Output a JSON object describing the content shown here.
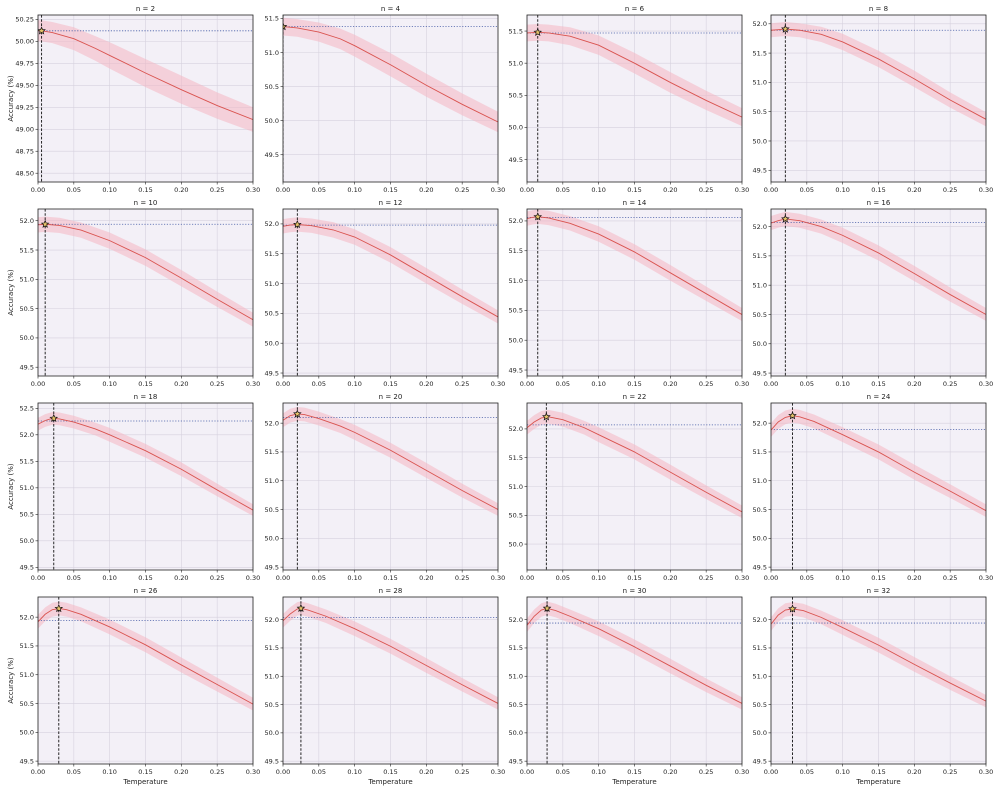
{
  "colors": {
    "mean": "#d9534f",
    "band": "#f4b6c2",
    "reference": "#4a5fa8",
    "best_line": "#111111",
    "star_fill": "#e6c36a"
  },
  "chart_data": {
    "type": "line",
    "shared_x_label": "Temperature",
    "shared_y_label": "Accuracy (%)",
    "x_ticks": [
      0.0,
      0.05,
      0.1,
      0.15,
      0.2,
      0.25,
      0.3
    ],
    "x_tick_labels": [
      "0.00",
      "0.05",
      "0.10",
      "0.15",
      "0.20",
      "0.25",
      "0.30"
    ],
    "xlim": [
      0.0,
      0.3
    ],
    "grid": true,
    "panels": [
      {
        "title": "n = 2",
        "ylim": [
          48.4,
          50.3
        ],
        "y_ticks": [
          48.5,
          48.75,
          49.0,
          49.25,
          49.5,
          49.75,
          50.0,
          50.25
        ],
        "y_tick_labels": [
          "48.50",
          "48.75",
          "49.00",
          "49.25",
          "49.50",
          "49.75",
          "50.00",
          "50.25"
        ],
        "x": [
          0.0,
          0.005,
          0.02,
          0.05,
          0.08,
          0.1,
          0.15,
          0.2,
          0.25,
          0.3
        ],
        "mean": [
          50.12,
          50.12,
          50.1,
          50.03,
          49.92,
          49.84,
          49.64,
          49.45,
          49.27,
          49.11
        ],
        "band": [
          0.12,
          0.12,
          0.12,
          0.13,
          0.14,
          0.15,
          0.16,
          0.16,
          0.15,
          0.14
        ],
        "reference": 50.12,
        "best_x": 0.005,
        "best_y": 50.12
      },
      {
        "title": "n = 4",
        "ylim": [
          49.1,
          51.55
        ],
        "y_ticks": [
          49.5,
          50.0,
          50.5,
          51.0,
          51.5
        ],
        "y_tick_labels": [
          "49.5",
          "50.0",
          "50.5",
          "51.0",
          "51.5"
        ],
        "x": [
          0.0,
          0.02,
          0.05,
          0.08,
          0.1,
          0.15,
          0.2,
          0.25,
          0.3
        ],
        "mean": [
          51.38,
          51.36,
          51.3,
          51.2,
          51.1,
          50.82,
          50.52,
          50.24,
          49.98
        ],
        "band": [
          0.13,
          0.13,
          0.14,
          0.15,
          0.16,
          0.17,
          0.17,
          0.16,
          0.15
        ],
        "reference": 51.38,
        "best_x": 0.0,
        "best_y": 51.38
      },
      {
        "title": "n = 6",
        "ylim": [
          49.15,
          51.75
        ],
        "y_ticks": [
          49.5,
          50.0,
          50.5,
          51.0,
          51.5
        ],
        "y_tick_labels": [
          "49.5",
          "50.0",
          "50.5",
          "51.0",
          "51.5"
        ],
        "x": [
          0.0,
          0.015,
          0.03,
          0.06,
          0.1,
          0.15,
          0.2,
          0.25,
          0.3
        ],
        "mean": [
          51.47,
          51.48,
          51.47,
          51.42,
          51.28,
          51.0,
          50.7,
          50.42,
          50.16
        ],
        "band": [
          0.13,
          0.13,
          0.13,
          0.14,
          0.15,
          0.16,
          0.16,
          0.15,
          0.14
        ],
        "reference": 51.47,
        "best_x": 0.015,
        "best_y": 51.48
      },
      {
        "title": "n = 8",
        "ylim": [
          49.3,
          52.15
        ],
        "y_ticks": [
          49.5,
          50.0,
          50.5,
          51.0,
          51.5,
          52.0
        ],
        "y_tick_labels": [
          "49.5",
          "50.0",
          "50.5",
          "51.0",
          "51.5",
          "52.0"
        ],
        "x": [
          0.0,
          0.01,
          0.02,
          0.04,
          0.07,
          0.1,
          0.15,
          0.2,
          0.25,
          0.3
        ],
        "mean": [
          51.89,
          51.9,
          51.91,
          51.89,
          51.82,
          51.69,
          51.4,
          51.06,
          50.7,
          50.37
        ],
        "band": [
          0.12,
          0.12,
          0.12,
          0.12,
          0.13,
          0.14,
          0.14,
          0.14,
          0.13,
          0.12
        ],
        "reference": 51.89,
        "best_x": 0.02,
        "best_y": 51.91
      },
      {
        "title": "n = 10",
        "ylim": [
          49.35,
          52.2
        ],
        "y_ticks": [
          49.5,
          50.0,
          50.5,
          51.0,
          51.5,
          52.0
        ],
        "y_tick_labels": [
          "49.5",
          "50.0",
          "50.5",
          "51.0",
          "51.5",
          "52.0"
        ],
        "x": [
          0.0,
          0.01,
          0.03,
          0.06,
          0.1,
          0.15,
          0.2,
          0.25,
          0.3
        ],
        "mean": [
          51.93,
          51.94,
          51.92,
          51.84,
          51.66,
          51.37,
          51.02,
          50.66,
          50.31
        ],
        "band": [
          0.13,
          0.13,
          0.13,
          0.13,
          0.14,
          0.14,
          0.14,
          0.13,
          0.12
        ],
        "reference": 51.94,
        "best_x": 0.01,
        "best_y": 51.94
      },
      {
        "title": "n = 12",
        "ylim": [
          49.45,
          52.25
        ],
        "y_ticks": [
          49.5,
          50.0,
          50.5,
          51.0,
          51.5,
          52.0
        ],
        "y_tick_labels": [
          "49.5",
          "50.0",
          "50.5",
          "51.0",
          "51.5",
          "52.0"
        ],
        "x": [
          0.0,
          0.01,
          0.02,
          0.04,
          0.07,
          0.1,
          0.15,
          0.2,
          0.25,
          0.3
        ],
        "mean": [
          51.96,
          51.98,
          51.99,
          51.97,
          51.9,
          51.78,
          51.48,
          51.13,
          50.78,
          50.44
        ],
        "band": [
          0.12,
          0.12,
          0.12,
          0.12,
          0.13,
          0.13,
          0.13,
          0.13,
          0.12,
          0.11
        ],
        "reference": 51.98,
        "best_x": 0.02,
        "best_y": 51.99
      },
      {
        "title": "n = 14",
        "ylim": [
          49.4,
          52.2
        ],
        "y_ticks": [
          49.5,
          50.0,
          50.5,
          51.0,
          51.5,
          52.0
        ],
        "y_tick_labels": [
          "49.5",
          "50.0",
          "50.5",
          "51.0",
          "51.5",
          "52.0"
        ],
        "x": [
          0.0,
          0.008,
          0.015,
          0.03,
          0.06,
          0.1,
          0.15,
          0.2,
          0.25,
          0.3
        ],
        "mean": [
          52.04,
          52.06,
          52.07,
          52.05,
          51.96,
          51.78,
          51.48,
          51.13,
          50.78,
          50.43
        ],
        "band": [
          0.12,
          0.12,
          0.12,
          0.12,
          0.12,
          0.13,
          0.13,
          0.13,
          0.12,
          0.11
        ],
        "reference": 52.06,
        "best_x": 0.015,
        "best_y": 52.07
      },
      {
        "title": "n = 16",
        "ylim": [
          49.45,
          52.3
        ],
        "y_ticks": [
          49.5,
          50.0,
          50.5,
          51.0,
          51.5,
          52.0
        ],
        "y_tick_labels": [
          "49.5",
          "50.0",
          "50.5",
          "51.0",
          "51.5",
          "52.0"
        ],
        "x": [
          0.0,
          0.01,
          0.02,
          0.04,
          0.07,
          0.1,
          0.15,
          0.2,
          0.25,
          0.3
        ],
        "mean": [
          52.06,
          52.1,
          52.13,
          52.1,
          52.0,
          51.85,
          51.55,
          51.2,
          50.84,
          50.5
        ],
        "band": [
          0.12,
          0.12,
          0.12,
          0.12,
          0.12,
          0.13,
          0.13,
          0.13,
          0.12,
          0.11
        ],
        "reference": 52.07,
        "best_x": 0.02,
        "best_y": 52.13
      },
      {
        "title": "n = 18",
        "ylim": [
          49.45,
          52.6
        ],
        "y_ticks": [
          49.5,
          50.0,
          50.5,
          51.0,
          51.5,
          52.0,
          52.5
        ],
        "y_tick_labels": [
          "49.5",
          "50.0",
          "50.5",
          "51.0",
          "51.5",
          "52.0",
          "52.5"
        ],
        "x": [
          0.0,
          0.01,
          0.02,
          0.03,
          0.05,
          0.08,
          0.1,
          0.15,
          0.2,
          0.25,
          0.3
        ],
        "mean": [
          52.2,
          52.27,
          52.31,
          52.3,
          52.24,
          52.11,
          52.0,
          51.7,
          51.35,
          50.96,
          50.58
        ],
        "band": [
          0.12,
          0.12,
          0.12,
          0.12,
          0.12,
          0.12,
          0.13,
          0.13,
          0.13,
          0.12,
          0.11
        ],
        "reference": 52.26,
        "best_x": 0.022,
        "best_y": 52.31
      },
      {
        "title": "n = 20",
        "ylim": [
          49.45,
          52.35
        ],
        "y_ticks": [
          49.5,
          50.0,
          50.5,
          51.0,
          51.5,
          52.0
        ],
        "y_tick_labels": [
          "49.5",
          "50.0",
          "50.5",
          "51.0",
          "51.5",
          "52.0"
        ],
        "x": [
          0.0,
          0.01,
          0.02,
          0.03,
          0.05,
          0.08,
          0.1,
          0.15,
          0.2,
          0.25,
          0.3
        ],
        "mean": [
          52.05,
          52.13,
          52.16,
          52.15,
          52.08,
          51.95,
          51.84,
          51.53,
          51.18,
          50.83,
          50.5
        ],
        "band": [
          0.12,
          0.12,
          0.12,
          0.12,
          0.12,
          0.12,
          0.13,
          0.13,
          0.13,
          0.12,
          0.11
        ],
        "reference": 52.1,
        "best_x": 0.02,
        "best_y": 52.16
      },
      {
        "title": "n = 22",
        "ylim": [
          49.55,
          52.45
        ],
        "y_ticks": [
          50.0,
          50.5,
          51.0,
          51.5,
          52.0
        ],
        "y_tick_labels": [
          "50.0",
          "50.5",
          "51.0",
          "51.5",
          "52.0"
        ],
        "x": [
          0.0,
          0.01,
          0.02,
          0.03,
          0.05,
          0.08,
          0.1,
          0.15,
          0.2,
          0.25,
          0.3
        ],
        "mean": [
          52.02,
          52.12,
          52.19,
          52.21,
          52.16,
          52.02,
          51.9,
          51.6,
          51.25,
          50.9,
          50.56
        ],
        "band": [
          0.12,
          0.12,
          0.12,
          0.12,
          0.12,
          0.12,
          0.13,
          0.13,
          0.13,
          0.12,
          0.11
        ],
        "reference": 52.07,
        "best_x": 0.027,
        "best_y": 52.21
      },
      {
        "title": "n = 24",
        "ylim": [
          49.45,
          52.35
        ],
        "y_ticks": [
          49.5,
          50.0,
          50.5,
          51.0,
          51.5,
          52.0
        ],
        "y_tick_labels": [
          "49.5",
          "50.0",
          "50.5",
          "51.0",
          "51.5",
          "52.0"
        ],
        "x": [
          0.0,
          0.01,
          0.02,
          0.03,
          0.04,
          0.06,
          0.1,
          0.15,
          0.2,
          0.25,
          0.3
        ],
        "mean": [
          51.88,
          52.02,
          52.1,
          52.13,
          52.11,
          52.03,
          51.8,
          51.5,
          51.15,
          50.82,
          50.48
        ],
        "band": [
          0.12,
          0.12,
          0.12,
          0.12,
          0.12,
          0.12,
          0.13,
          0.13,
          0.13,
          0.12,
          0.11
        ],
        "reference": 51.89,
        "best_x": 0.03,
        "best_y": 52.13
      },
      {
        "title": "n = 26",
        "ylim": [
          49.45,
          52.35
        ],
        "y_ticks": [
          49.5,
          50.0,
          50.5,
          51.0,
          51.5,
          52.0
        ],
        "y_tick_labels": [
          "49.5",
          "50.0",
          "50.5",
          "51.0",
          "51.5",
          "52.0"
        ],
        "x": [
          0.0,
          0.01,
          0.02,
          0.03,
          0.04,
          0.06,
          0.1,
          0.15,
          0.2,
          0.25,
          0.3
        ],
        "mean": [
          51.92,
          52.05,
          52.13,
          52.15,
          52.13,
          52.05,
          51.83,
          51.52,
          51.17,
          50.83,
          50.49
        ],
        "band": [
          0.12,
          0.12,
          0.12,
          0.12,
          0.12,
          0.12,
          0.13,
          0.13,
          0.13,
          0.12,
          0.11
        ],
        "reference": 51.94,
        "best_x": 0.029,
        "best_y": 52.15
      },
      {
        "title": "n = 28",
        "ylim": [
          49.45,
          52.4
        ],
        "y_ticks": [
          49.5,
          50.0,
          50.5,
          51.0,
          51.5,
          52.0
        ],
        "y_tick_labels": [
          "49.5",
          "50.0",
          "50.5",
          "51.0",
          "51.5",
          "52.0"
        ],
        "x": [
          0.0,
          0.01,
          0.02,
          0.025,
          0.035,
          0.06,
          0.1,
          0.15,
          0.2,
          0.25,
          0.3
        ],
        "mean": [
          51.98,
          52.1,
          52.19,
          52.2,
          52.17,
          52.06,
          51.84,
          51.53,
          51.19,
          50.85,
          50.52
        ],
        "band": [
          0.12,
          0.12,
          0.12,
          0.12,
          0.12,
          0.12,
          0.13,
          0.13,
          0.13,
          0.12,
          0.11
        ],
        "reference": 52.04,
        "best_x": 0.025,
        "best_y": 52.2
      },
      {
        "title": "n = 30",
        "ylim": [
          49.45,
          52.4
        ],
        "y_ticks": [
          49.5,
          50.0,
          50.5,
          51.0,
          51.5,
          52.0
        ],
        "y_tick_labels": [
          "49.5",
          "50.0",
          "50.5",
          "51.0",
          "51.5",
          "52.0"
        ],
        "x": [
          0.0,
          0.01,
          0.02,
          0.028,
          0.04,
          0.06,
          0.1,
          0.15,
          0.2,
          0.25,
          0.3
        ],
        "mean": [
          51.9,
          52.06,
          52.17,
          52.2,
          52.16,
          52.06,
          51.84,
          51.52,
          51.18,
          50.84,
          50.52
        ],
        "band": [
          0.12,
          0.12,
          0.12,
          0.12,
          0.12,
          0.12,
          0.13,
          0.13,
          0.13,
          0.12,
          0.11
        ],
        "reference": 51.94,
        "best_x": 0.028,
        "best_y": 52.2
      },
      {
        "title": "n = 32",
        "ylim": [
          49.45,
          52.4
        ],
        "y_ticks": [
          49.5,
          50.0,
          50.5,
          51.0,
          51.5,
          52.0
        ],
        "y_tick_labels": [
          "49.5",
          "50.0",
          "50.5",
          "51.0",
          "51.5",
          "52.0"
        ],
        "x": [
          0.0,
          0.01,
          0.02,
          0.03,
          0.045,
          0.07,
          0.1,
          0.15,
          0.2,
          0.25,
          0.3
        ],
        "mean": [
          51.92,
          52.08,
          52.17,
          52.19,
          52.16,
          52.04,
          51.86,
          51.55,
          51.21,
          50.88,
          50.56
        ],
        "band": [
          0.12,
          0.12,
          0.12,
          0.12,
          0.12,
          0.12,
          0.13,
          0.13,
          0.13,
          0.12,
          0.11
        ],
        "reference": 51.94,
        "best_x": 0.03,
        "best_y": 52.19
      }
    ]
  }
}
